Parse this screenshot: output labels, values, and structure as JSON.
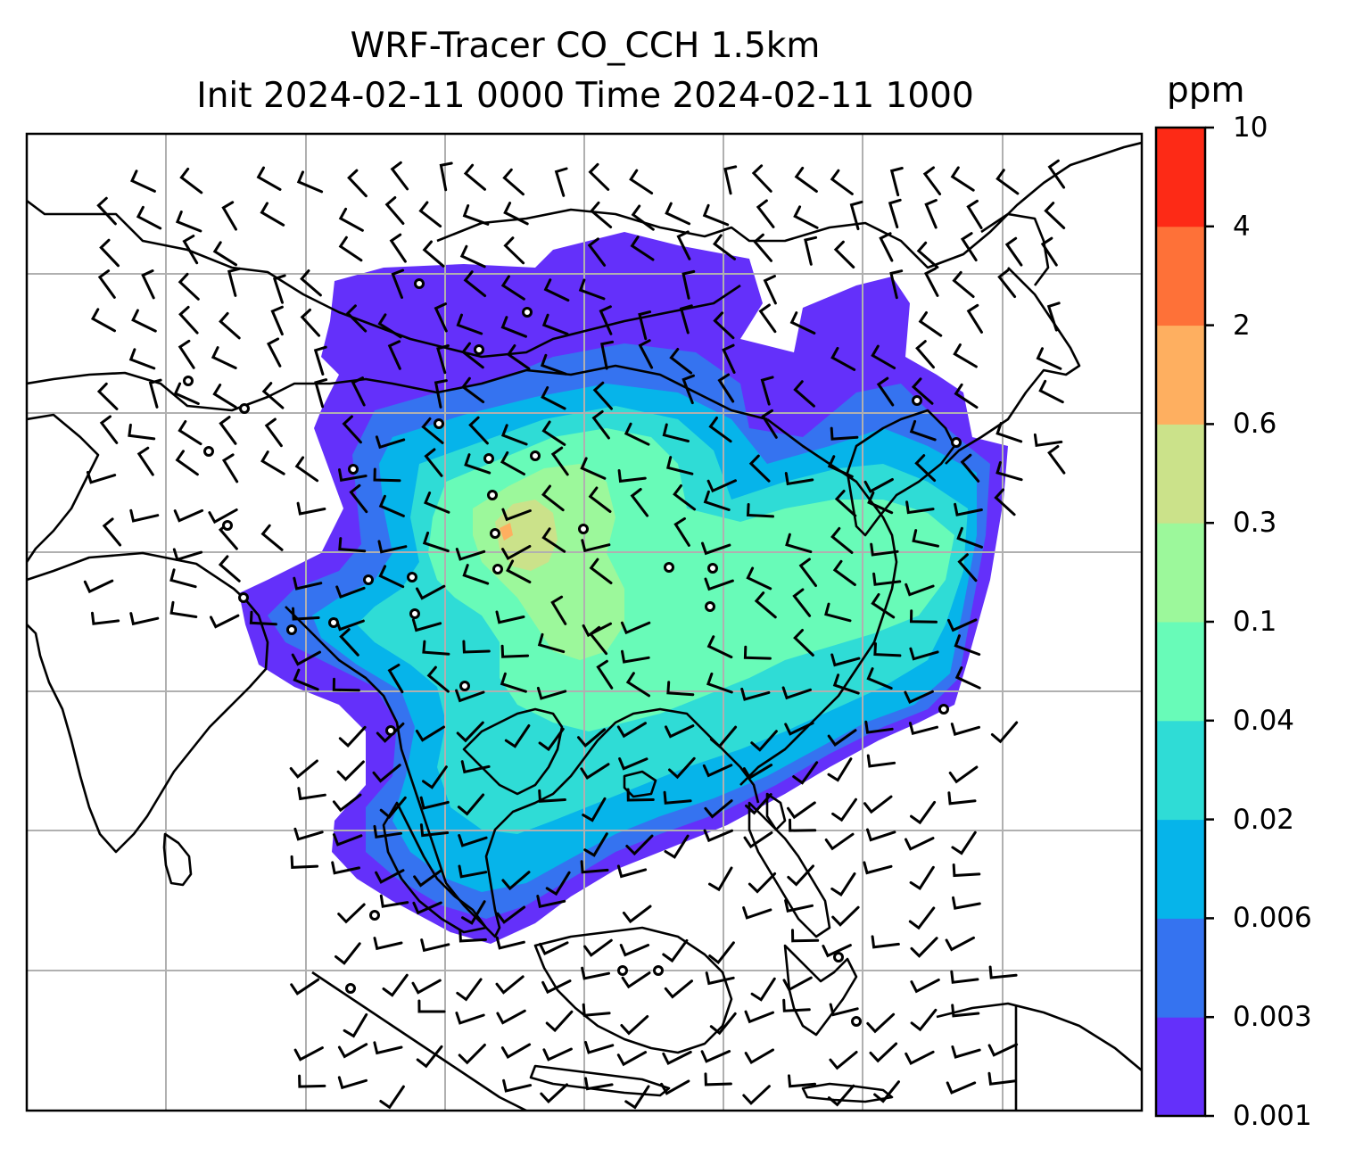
{
  "title_line1": "WRF-Tracer CO_CCH 1.5km",
  "title_line2": "Init 2024-02-11 0000 Time 2024-02-11 1000",
  "colorbar": {
    "unit": "ppm",
    "levels": [
      "0.001",
      "0.003",
      "0.006",
      "0.02",
      "0.04",
      "0.1",
      "0.3",
      "0.6",
      "2",
      "4",
      "10"
    ],
    "colors": [
      "#6430fa",
      "#3573f0",
      "#06b4ea",
      "#2fdcd6",
      "#68fbb8",
      "#9cf89b",
      "#cbe28a",
      "#feaf60",
      "#fe7138",
      "#fd2a16"
    ]
  },
  "map": {
    "ocean_color": "#ffffff",
    "coastline_color": "#000000",
    "gridline_color": "#b0b0b0",
    "wind_symbol": "wind-barb",
    "calm_symbol": "calm-circle"
  }
}
